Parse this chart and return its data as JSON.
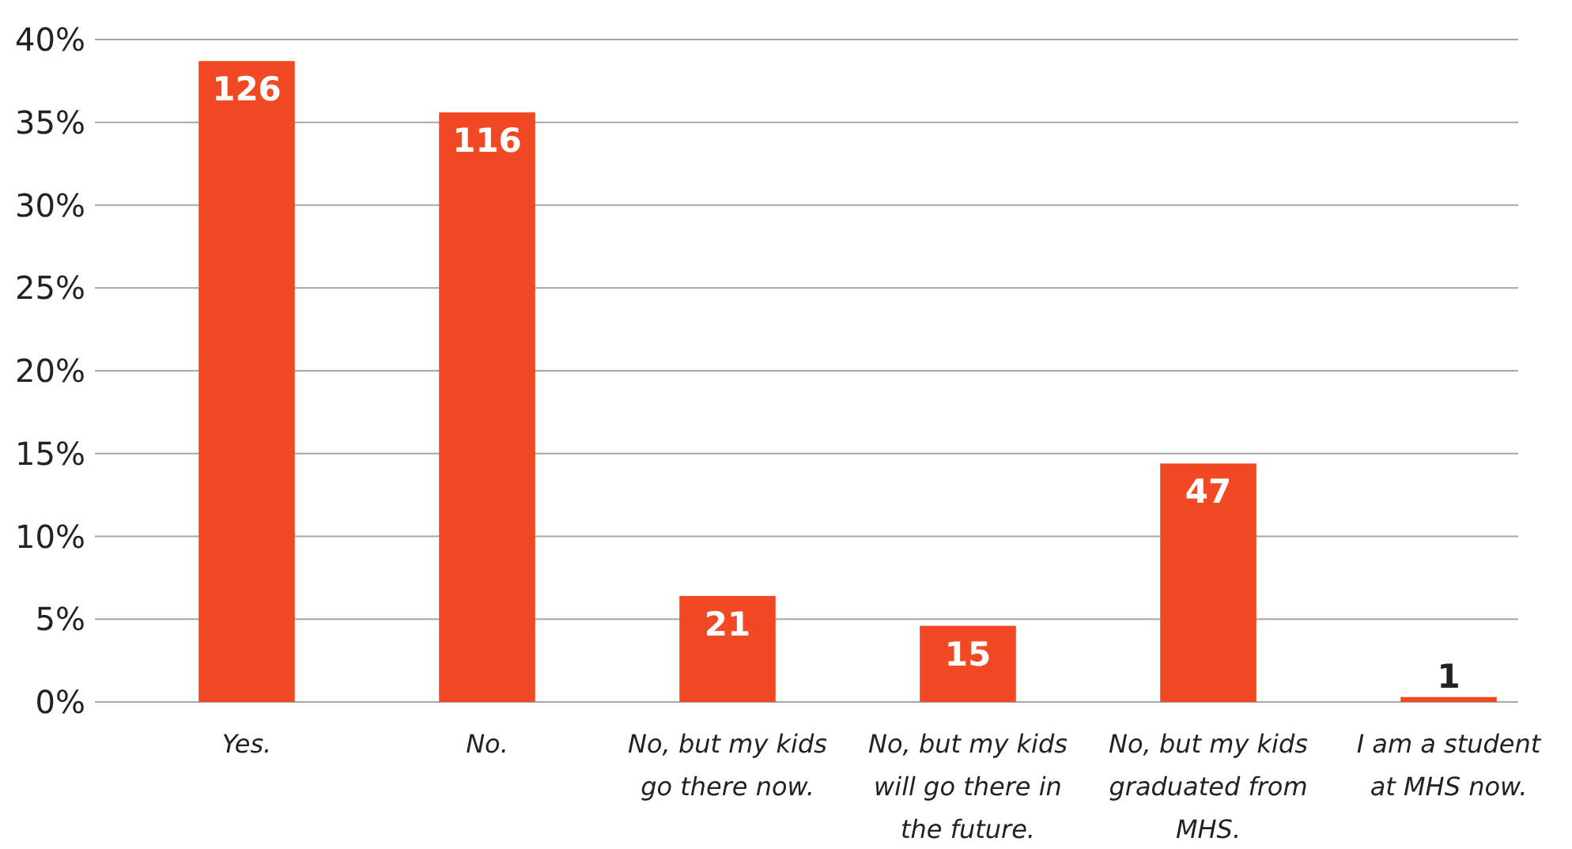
{
  "chart_data": {
    "type": "bar",
    "categories": [
      "Yes.",
      "No.",
      "No, but my kids go there now.",
      "No, but my kids will go there in the future.",
      "No, but my kids graduated from MHS.",
      "I am a student at MHS now."
    ],
    "values": [
      38.7,
      35.6,
      6.4,
      4.6,
      14.4,
      0.3
    ],
    "annotations": [
      {
        "text": "126",
        "x": "Yes.",
        "y": 38.7
      },
      {
        "text": "116",
        "x": "No.",
        "y": 35.6
      },
      {
        "text": "21",
        "x": "No, but my kids go there now.",
        "y": 6.4
      },
      {
        "text": "15",
        "x": "No, but my kids will go there in the future.",
        "y": 4.6
      },
      {
        "text": "47",
        "x": "No, but my kids graduated from MHS.",
        "y": 14.4
      },
      {
        "text": "1",
        "x": "I am a student at MHS now.",
        "y": 0.3
      }
    ],
    "color": "#f04923",
    "ylim": [
      0,
      40
    ],
    "yticks": [
      {
        "value": 0,
        "label": "0%"
      },
      {
        "value": 5,
        "label": "5%"
      },
      {
        "value": 10,
        "label": "10%"
      },
      {
        "value": 15,
        "label": "15%"
      },
      {
        "value": 20,
        "label": "20%"
      },
      {
        "value": 25,
        "label": "25%"
      },
      {
        "value": 30,
        "label": "30%"
      },
      {
        "value": 35,
        "label": "35%"
      },
      {
        "value": 40,
        "label": "40%"
      }
    ],
    "grid": "y"
  }
}
